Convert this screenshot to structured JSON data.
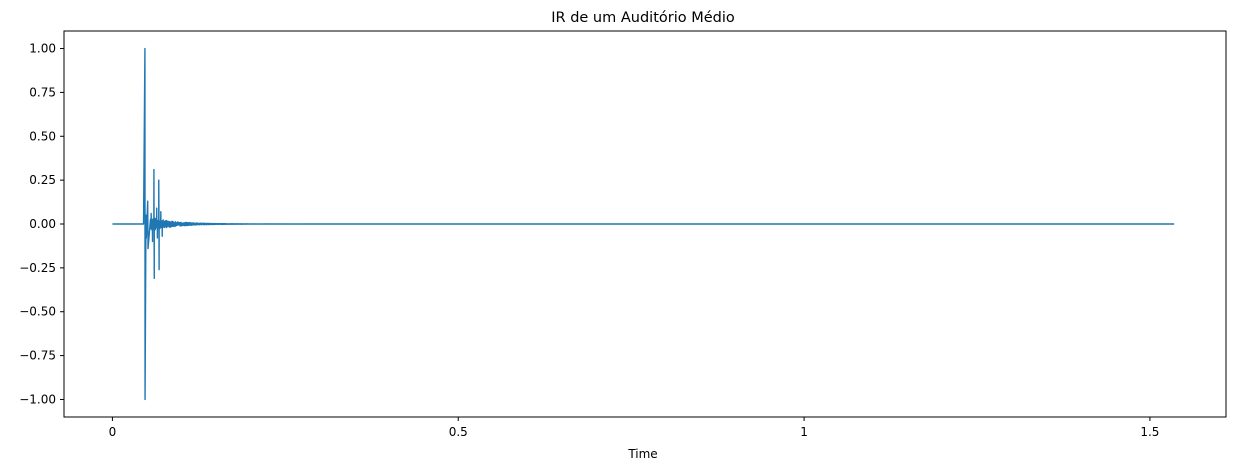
{
  "chart_data": {
    "type": "line",
    "title": "IR de um Auditório Médio",
    "xlabel": "Time",
    "ylabel": "",
    "xlim": [
      -0.07,
      1.61
    ],
    "ylim": [
      -1.1,
      1.1
    ],
    "x_ticks": [
      0,
      0.5,
      1,
      1.5
    ],
    "x_tick_labels": [
      "0",
      "0.5",
      "1",
      "1.5"
    ],
    "y_ticks": [
      1.0,
      0.75,
      0.5,
      0.25,
      0.0,
      -0.25,
      -0.5,
      -0.75,
      -1.0
    ],
    "y_tick_labels": [
      "1.00",
      "0.75",
      "0.50",
      "0.25",
      "0.00",
      "−0.25",
      "−0.50",
      "−0.75",
      "−1.00"
    ],
    "grid": false,
    "duration": 1.535,
    "series": [
      {
        "color": "#1f77b4",
        "peaks": [
          {
            "x": 0.047,
            "y": 1.0
          },
          {
            "x": 0.0472,
            "y": -1.0
          },
          {
            "x": 0.0485,
            "y": 0.05
          },
          {
            "x": 0.049,
            "y": -0.08
          },
          {
            "x": 0.051,
            "y": 0.13
          },
          {
            "x": 0.0515,
            "y": -0.14
          },
          {
            "x": 0.056,
            "y": 0.06
          },
          {
            "x": 0.058,
            "y": -0.1
          },
          {
            "x": 0.06,
            "y": 0.31
          },
          {
            "x": 0.0605,
            "y": -0.31
          },
          {
            "x": 0.064,
            "y": 0.09
          },
          {
            "x": 0.065,
            "y": -0.08
          },
          {
            "x": 0.067,
            "y": 0.25
          },
          {
            "x": 0.0675,
            "y": -0.26
          },
          {
            "x": 0.07,
            "y": 0.07
          },
          {
            "x": 0.072,
            "y": -0.07
          }
        ],
        "tail": {
          "start": 0.055,
          "end": 0.27,
          "amplitude": 0.04,
          "decay": 0.035
        }
      }
    ]
  }
}
